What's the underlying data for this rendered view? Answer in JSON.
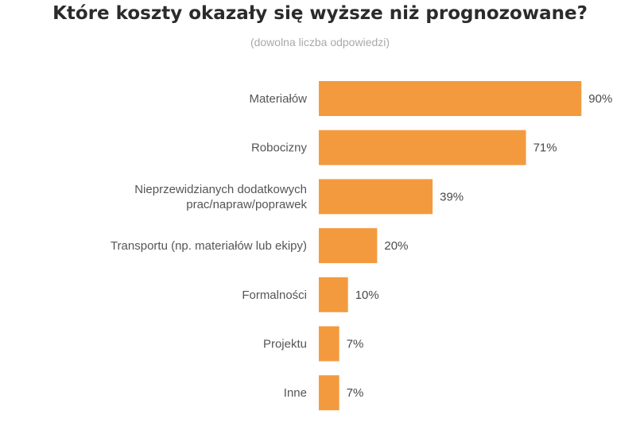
{
  "chart_data": {
    "type": "bar",
    "orientation": "horizontal",
    "title": "Które koszty okazały się wyższe niż prognozowane?",
    "subtitle": "(dowolna liczba odpowiedzi)",
    "categories": [
      [
        "Materiałów"
      ],
      [
        "Robocizny"
      ],
      [
        "Nieprzewidzianych dodatkowych",
        "prac/napraw/poprawek"
      ],
      [
        "Transportu (np. materiałów lub ekipy)"
      ],
      [
        "Formalności"
      ],
      [
        "Projektu"
      ],
      [
        "Inne"
      ]
    ],
    "values": [
      90,
      71,
      39,
      20,
      10,
      7,
      7
    ],
    "value_labels": [
      "90%",
      "71%",
      "39%",
      "20%",
      "10%",
      "7%",
      "7%"
    ],
    "unit": "%",
    "xlim": [
      0,
      100
    ],
    "grid": false,
    "legend": "none",
    "bar_color": "#F39A3F"
  }
}
